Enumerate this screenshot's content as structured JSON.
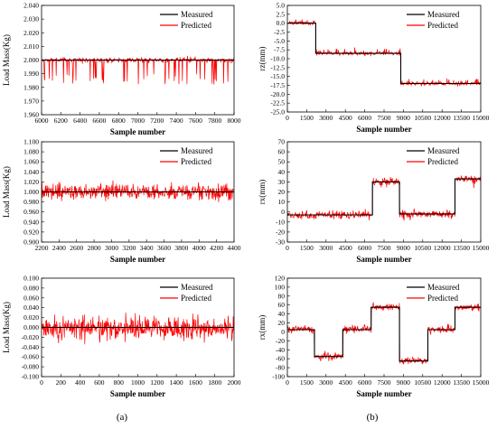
{
  "colors": {
    "measured": "#000000",
    "predicted": "#ff0000",
    "axis": "#000000",
    "background": "#ffffff"
  },
  "panel_labels": {
    "a": "(a)",
    "b": "(b)"
  },
  "chart_data": [
    {
      "id": "a1",
      "type": "line",
      "xlabel": "Sample number",
      "ylabel": "Load Mass(Kg)",
      "xlim": [
        6000,
        8000
      ],
      "ylim": [
        1.96,
        2.04
      ],
      "xticks": [
        6000,
        6200,
        6400,
        6600,
        6800,
        7000,
        7200,
        7400,
        7600,
        7800,
        8000
      ],
      "xticklabels": [
        "6000",
        "6200",
        "6400",
        "6600",
        "6800",
        "7000",
        "7200",
        "7400",
        "7600",
        "7800",
        "8000"
      ],
      "yticks": [
        1.96,
        1.97,
        1.98,
        1.99,
        2.0,
        2.01,
        2.02,
        2.03,
        2.04
      ],
      "yticklabels": [
        "1.960",
        "1.970",
        "1.980",
        "1.990",
        "2.000",
        "2.010",
        "2.020",
        "2.030",
        "2.040"
      ],
      "legend": [
        "Measured",
        "Predicted"
      ],
      "legend_position": "top-right",
      "series": [
        {
          "name": "Measured",
          "x": [
            6000,
            8000
          ],
          "y": [
            2.0,
            2.0
          ]
        },
        {
          "name": "Predicted",
          "generated": {
            "n": 500,
            "segments": [
              {
                "from": 6000,
                "to": 8000,
                "level": 2.0
              }
            ],
            "noise": 0.0015,
            "spike_prob": 0.09,
            "spike_amp": 0.018,
            "spike_dir": -1,
            "seed": 11
          }
        }
      ]
    },
    {
      "id": "b1",
      "type": "line",
      "xlabel": "Sample number",
      "ylabel": "rz(mm)",
      "xlim": [
        0,
        15000
      ],
      "ylim": [
        -25,
        5
      ],
      "xticks": [
        0,
        1500,
        3000,
        4500,
        6000,
        7500,
        9000,
        10500,
        12000,
        13500,
        15000
      ],
      "xticklabels": [
        "0",
        "1500",
        "3000",
        "4500",
        "6000",
        "7500",
        "9000",
        "10500",
        "12000",
        "13500",
        "15000"
      ],
      "yticks": [
        -25,
        -22.5,
        -20,
        -17.5,
        -15,
        -12.5,
        -10,
        -7.5,
        -5,
        -2.5,
        0,
        2.5,
        5
      ],
      "yticklabels": [
        "-25.0",
        "-22.5",
        "-20.0",
        "-17.5",
        "-15.0",
        "-12.5",
        "-10.0",
        "-7.5",
        "-5.0",
        "-2.5",
        "0.0",
        "2.5",
        "5.0"
      ],
      "legend": [
        "Measured",
        "Predicted"
      ],
      "legend_position": "top-right",
      "series": [
        {
          "name": "Measured",
          "x": [
            0,
            2200,
            2200,
            8800,
            8800,
            15000
          ],
          "y": [
            0,
            0,
            -8.5,
            -8.5,
            -17,
            -17
          ]
        },
        {
          "name": "Predicted",
          "generated": {
            "n": 500,
            "segments": [
              {
                "from": 0,
                "to": 2200,
                "level": 0
              },
              {
                "from": 2200,
                "to": 8800,
                "level": -8.5
              },
              {
                "from": 8800,
                "to": 15000,
                "level": -17
              }
            ],
            "noise": 0.5,
            "spike_prob": 0.06,
            "spike_amp": 1.2,
            "spike_dir": 1,
            "seed": 23
          }
        }
      ]
    },
    {
      "id": "a2",
      "type": "line",
      "xlabel": "Sample number",
      "ylabel": "Load Mass(Kg)",
      "xlim": [
        2200,
        4400
      ],
      "ylim": [
        0.9,
        1.1
      ],
      "xticks": [
        2200,
        2400,
        2600,
        2800,
        3000,
        3200,
        3400,
        3600,
        3800,
        4000,
        4200,
        4400
      ],
      "xticklabels": [
        "2200",
        "2400",
        "2600",
        "2800",
        "3000",
        "3200",
        "3400",
        "3600",
        "3800",
        "4000",
        "4200",
        "4400"
      ],
      "yticks": [
        0.9,
        0.92,
        0.94,
        0.96,
        0.98,
        1.0,
        1.02,
        1.04,
        1.06,
        1.08,
        1.1
      ],
      "yticklabels": [
        "0.900",
        "0.920",
        "0.940",
        "0.960",
        "0.980",
        "1.000",
        "1.020",
        "1.040",
        "1.060",
        "1.080",
        "1.100"
      ],
      "legend": [
        "Measured",
        "Predicted"
      ],
      "legend_position": "top-right",
      "series": [
        {
          "name": "Measured",
          "x": [
            2200,
            4400
          ],
          "y": [
            1.0,
            1.0
          ]
        },
        {
          "name": "Predicted",
          "generated": {
            "n": 500,
            "segments": [
              {
                "from": 2200,
                "to": 4400,
                "level": 1.0
              }
            ],
            "noise": 0.014,
            "spike_prob": 0.05,
            "spike_amp": 0.012,
            "spike_dir": 0,
            "seed": 37
          }
        }
      ]
    },
    {
      "id": "b2",
      "type": "line",
      "xlabel": "Sample number",
      "ylabel": "rx(mm)",
      "xlim": [
        0,
        15000
      ],
      "ylim": [
        -30,
        70
      ],
      "xticks": [
        0,
        1500,
        3000,
        4500,
        6000,
        7500,
        9000,
        10500,
        12000,
        13500,
        15000
      ],
      "xticklabels": [
        "0",
        "1500",
        "3000",
        "4500",
        "6000",
        "7500",
        "9000",
        "10500",
        "12000",
        "13500",
        "15000"
      ],
      "yticks": [
        -30,
        -20,
        -10,
        0,
        10,
        20,
        30,
        40,
        50,
        60,
        70
      ],
      "yticklabels": [
        "-30",
        "-20",
        "-10",
        "0",
        "10",
        "20",
        "30",
        "40",
        "50",
        "60",
        "70"
      ],
      "legend": [
        "Measured",
        "Predicted"
      ],
      "legend_position": "top-right",
      "series": [
        {
          "name": "Measured",
          "x": [
            0,
            6600,
            6600,
            8700,
            8700,
            13000,
            13000,
            15000
          ],
          "y": [
            -3,
            -3,
            30,
            30,
            -2,
            -2,
            33,
            33
          ]
        },
        {
          "name": "Predicted",
          "generated": {
            "n": 500,
            "segments": [
              {
                "from": 0,
                "to": 6600,
                "level": -3
              },
              {
                "from": 6600,
                "to": 8700,
                "level": 30
              },
              {
                "from": 8700,
                "to": 13000,
                "level": -2
              },
              {
                "from": 13000,
                "to": 15000,
                "level": 33
              }
            ],
            "noise": 3.5,
            "spike_prob": 0.04,
            "spike_amp": 5,
            "spike_dir": 0,
            "seed": 41
          }
        }
      ]
    },
    {
      "id": "a3",
      "type": "line",
      "xlabel": "Sample number",
      "ylabel": "Load Mass(Kg)",
      "xlim": [
        0,
        2000
      ],
      "ylim": [
        -0.1,
        0.1
      ],
      "xticks": [
        0,
        200,
        400,
        600,
        800,
        1000,
        1200,
        1400,
        1600,
        1800,
        2000
      ],
      "xticklabels": [
        "0",
        "200",
        "400",
        "600",
        "800",
        "1000",
        "1200",
        "1400",
        "1600",
        "1800",
        "2000"
      ],
      "yticks": [
        -0.1,
        -0.08,
        -0.06,
        -0.04,
        -0.02,
        0,
        0.02,
        0.04,
        0.06,
        0.08,
        0.1
      ],
      "yticklabels": [
        "-0.100",
        "-0.080",
        "-0.060",
        "-0.040",
        "-0.020",
        "0.000",
        "0.020",
        "0.040",
        "0.060",
        "0.080",
        "0.100"
      ],
      "legend": [
        "Measured",
        "Predicted"
      ],
      "legend_position": "top-right",
      "series": [
        {
          "name": "Measured",
          "x": [
            0,
            2000
          ],
          "y": [
            0,
            0
          ]
        },
        {
          "name": "Predicted",
          "generated": {
            "n": 500,
            "segments": [
              {
                "from": 0,
                "to": 2000,
                "level": 0
              }
            ],
            "noise": 0.022,
            "spike_prob": 0.05,
            "spike_amp": 0.015,
            "spike_dir": 0,
            "seed": 53
          }
        }
      ]
    },
    {
      "id": "b3",
      "type": "line",
      "xlabel": "Sample number",
      "ylabel": "rx(mm)",
      "xlim": [
        0,
        15000
      ],
      "ylim": [
        -100,
        120
      ],
      "xticks": [
        0,
        1500,
        3000,
        4500,
        6000,
        7500,
        9000,
        10500,
        12000,
        13500,
        15000
      ],
      "xticklabels": [
        "0",
        "1500",
        "3000",
        "4500",
        "6000",
        "7500",
        "9000",
        "10500",
        "12000",
        "13500",
        "15000"
      ],
      "yticks": [
        -100,
        -80,
        -60,
        -40,
        -20,
        0,
        20,
        40,
        60,
        80,
        100,
        120
      ],
      "yticklabels": [
        "-100",
        "-80",
        "-60",
        "-40",
        "-20",
        "0",
        "20",
        "40",
        "60",
        "80",
        "100",
        "120"
      ],
      "legend": [
        "Measured",
        "Predicted"
      ],
      "legend_position": "top-right",
      "series": [
        {
          "name": "Measured",
          "x": [
            0,
            2100,
            2100,
            4300,
            4300,
            6500,
            6500,
            8700,
            8700,
            10900,
            10900,
            13000,
            13000,
            15000
          ],
          "y": [
            5,
            5,
            -55,
            -55,
            5,
            5,
            55,
            55,
            -65,
            -65,
            5,
            5,
            55,
            55
          ]
        },
        {
          "name": "Predicted",
          "generated": {
            "n": 500,
            "segments": [
              {
                "from": 0,
                "to": 2100,
                "level": 5
              },
              {
                "from": 2100,
                "to": 4300,
                "level": -55
              },
              {
                "from": 4300,
                "to": 6500,
                "level": 5
              },
              {
                "from": 6500,
                "to": 8700,
                "level": 55
              },
              {
                "from": 8700,
                "to": 10900,
                "level": -65
              },
              {
                "from": 10900,
                "to": 13000,
                "level": 5
              },
              {
                "from": 13000,
                "to": 15000,
                "level": 55
              }
            ],
            "noise": 6.5,
            "spike_prob": 0.03,
            "spike_amp": 8,
            "spike_dir": 0,
            "seed": 67
          }
        }
      ]
    }
  ]
}
